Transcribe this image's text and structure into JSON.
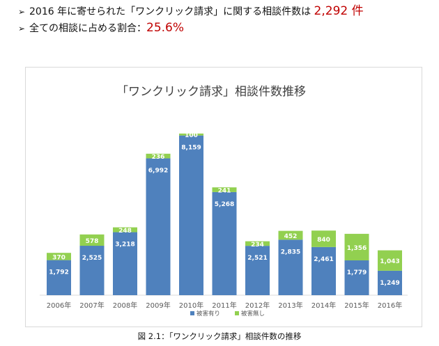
{
  "header": {
    "line1": {
      "prefix": "2016 年に寄せられた「ワンクリック請求」に関する相談件数は ",
      "value": "2,292 件"
    },
    "line2": {
      "prefix": "全ての相談に占める割合：",
      "value": "25.6%"
    }
  },
  "caption": "図 2.1：「ワンクリック請求」相談件数の推移",
  "colors": {
    "damage": "#4f81bd",
    "no_damage": "#92d050",
    "red": "#c00000"
  },
  "chart_data": {
    "type": "bar",
    "stacked": true,
    "title": "「ワンクリック請求」相談件数推移",
    "categories": [
      "2006年",
      "2007年",
      "2008年",
      "2009年",
      "2010年",
      "2011年",
      "2012年",
      "2013年",
      "2014年",
      "2015年",
      "2016年"
    ],
    "series": [
      {
        "name": "被害有り",
        "values": [
          1792,
          2525,
          3218,
          6992,
          8159,
          5268,
          2521,
          2835,
          2461,
          1779,
          1249
        ],
        "labels": [
          "1,792",
          "2,525",
          "3,218",
          "6,992",
          "8,159",
          "5,268",
          "2,521",
          "2,835",
          "2,461",
          "1,779",
          "1,249"
        ]
      },
      {
        "name": "被害無し",
        "values": [
          370,
          578,
          248,
          236,
          100,
          241,
          234,
          452,
          840,
          1356,
          1043
        ],
        "labels": [
          "370",
          "578",
          "248",
          "236",
          "100",
          "241",
          "234",
          "452",
          "840",
          "1,356",
          "1,043"
        ]
      }
    ],
    "ylim": [
      0,
      9000
    ],
    "grid": false,
    "legend": "bottom"
  }
}
